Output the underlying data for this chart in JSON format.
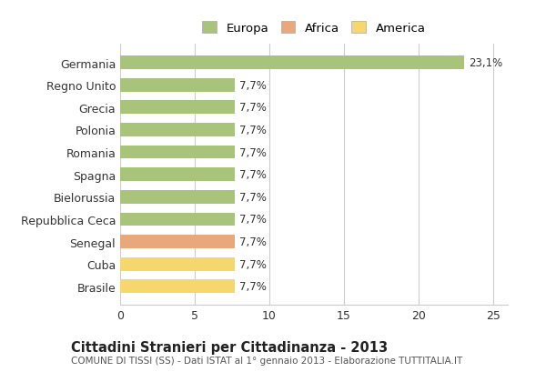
{
  "categories": [
    "Brasile",
    "Cuba",
    "Senegal",
    "Repubblica Ceca",
    "Bielorussia",
    "Spagna",
    "Romania",
    "Polonia",
    "Grecia",
    "Regno Unito",
    "Germania"
  ],
  "values": [
    7.7,
    7.7,
    7.7,
    7.7,
    7.7,
    7.7,
    7.7,
    7.7,
    7.7,
    7.7,
    23.1
  ],
  "bar_colors": [
    "#f5d76e",
    "#f5d76e",
    "#e8a87c",
    "#a8c47a",
    "#a8c47a",
    "#a8c47a",
    "#a8c47a",
    "#a8c47a",
    "#a8c47a",
    "#a8c47a",
    "#a8c47a"
  ],
  "value_labels": [
    "7,7%",
    "7,7%",
    "7,7%",
    "7,7%",
    "7,7%",
    "7,7%",
    "7,7%",
    "7,7%",
    "7,7%",
    "7,7%",
    "23,1%"
  ],
  "xlim": [
    0,
    26
  ],
  "xticks": [
    0,
    5,
    10,
    15,
    20,
    25
  ],
  "title": "Cittadini Stranieri per Cittadinanza - 2013",
  "subtitle": "COMUNE DI TISSI (SS) - Dati ISTAT al 1° gennaio 2013 - Elaborazione TUTTITALIA.IT",
  "legend_labels": [
    "Europa",
    "Africa",
    "America"
  ],
  "legend_colors": [
    "#a8c47a",
    "#e8a87c",
    "#f5d76e"
  ],
  "background_color": "#ffffff",
  "grid_color": "#cccccc",
  "bar_height": 0.6
}
